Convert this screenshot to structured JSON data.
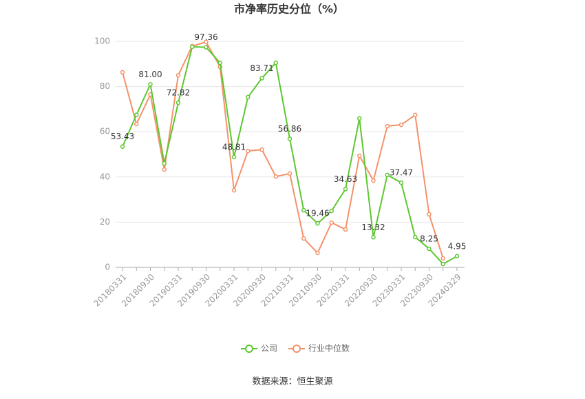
{
  "chart_data": {
    "type": "line",
    "title": "市净率历史分位（%）",
    "source": "数据来源：恒生聚源",
    "categories": [
      "20180331",
      null,
      "20180930",
      null,
      "20190331",
      null,
      "20190930",
      null,
      "20200331",
      null,
      "20200930",
      null,
      "20210331",
      null,
      "20210930",
      null,
      "20220331",
      null,
      "20220930",
      null,
      "20230331",
      null,
      "20230930",
      null,
      "20240329"
    ],
    "series": [
      {
        "name": "公司",
        "color": "#5cc72f",
        "values": [
          53.43,
          67.5,
          81.0,
          46,
          72.82,
          97.6,
          97.36,
          90.5,
          48.81,
          75.3,
          83.71,
          90.5,
          56.86,
          25.3,
          19.46,
          25,
          34.63,
          65.9,
          13.32,
          40.9,
          37.47,
          13.4,
          8.25,
          1.5,
          4.95
        ],
        "value_labels": [
          "53.43",
          null,
          "81.00",
          null,
          "72.82",
          null,
          "97.36",
          null,
          "48.81",
          null,
          "83.71",
          null,
          "56.86",
          null,
          "19.46",
          null,
          "34.63",
          null,
          "13.32",
          null,
          "37.47",
          null,
          "8.25",
          null,
          "4.95"
        ]
      },
      {
        "name": "行业中位数",
        "color": "#f5916a",
        "values": [
          86.3,
          63.4,
          76.5,
          43.3,
          85,
          97.9,
          99.7,
          88.7,
          34.1,
          51.5,
          52.1,
          40.2,
          41.5,
          12.8,
          6.4,
          19.8,
          16.8,
          49.4,
          38.4,
          62.5,
          63.1,
          67.4,
          23.5,
          4.0,
          null
        ]
      }
    ],
    "ylim": [
      0,
      100
    ],
    "yticks": [
      0,
      20,
      40,
      60,
      80,
      100
    ],
    "grid": true
  }
}
